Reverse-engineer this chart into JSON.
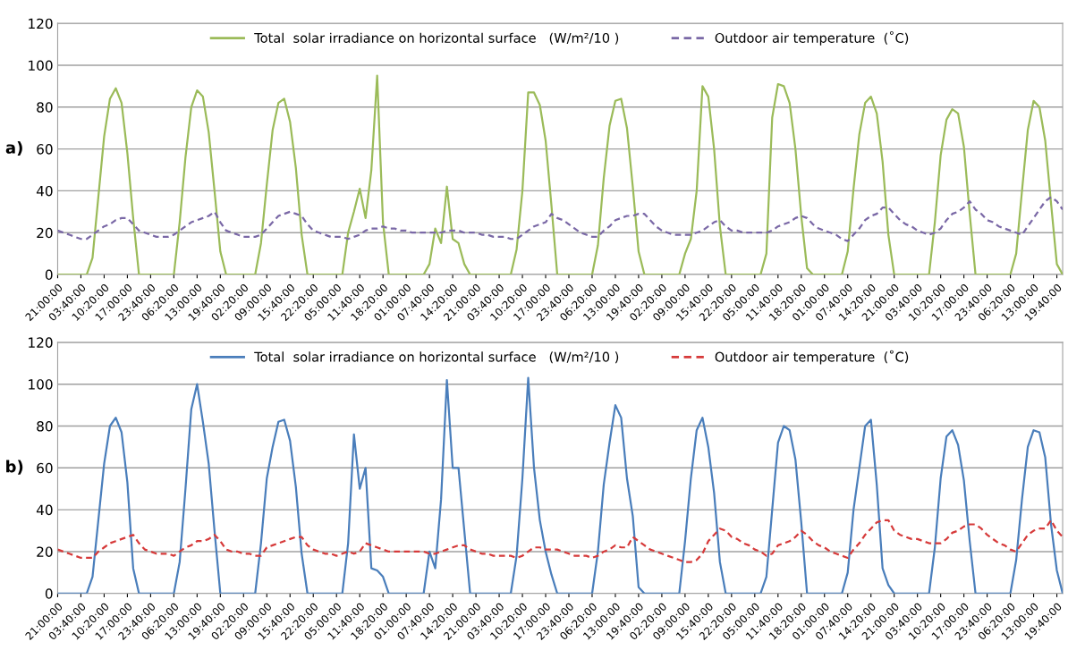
{
  "chart_data": [
    {
      "type": "line",
      "annotations": [
        "a)"
      ],
      "legend": "top",
      "grid": "y",
      "ylim": [
        0,
        120
      ],
      "yticks": [
        0,
        20,
        40,
        60,
        80,
        100,
        120
      ],
      "categories": [
        "21:00:00",
        null,
        null,
        null,
        "03:40:00",
        null,
        null,
        null,
        "10:20:00",
        null,
        null,
        null,
        "17:00:00",
        null,
        null,
        null,
        "23:40:00",
        null,
        null,
        null,
        "06:20:00",
        null,
        null,
        null,
        "13:00:00",
        null,
        null,
        null,
        "19:40:00",
        null,
        null,
        null,
        "02:20:00",
        null,
        null,
        null,
        "09:00:00",
        null,
        null,
        null,
        "15:40:00",
        null,
        null,
        null,
        "22:20:00",
        null,
        null,
        null,
        "05:00:00",
        null,
        null,
        null,
        "11:40:00",
        null,
        null,
        null,
        "18:20:00",
        null,
        null,
        null,
        "01:00:00",
        null,
        null,
        null,
        "07:40:00",
        null,
        null,
        null,
        "14:20:00",
        null,
        null,
        null,
        "21:00:00",
        null,
        null,
        null,
        "03:40:00",
        null,
        null,
        null,
        "10:20:00",
        null,
        null,
        null,
        "17:00:00",
        null,
        null,
        null,
        "23:40:00",
        null,
        null,
        null,
        "06:20:00",
        null,
        null,
        null,
        "13:00:00",
        null,
        null,
        null,
        "19:40:00",
        null,
        null,
        null,
        "02:20:00",
        null,
        null,
        null,
        "09:00:00",
        null,
        null,
        null,
        "15:40:00",
        null,
        null,
        null,
        "22:20:00",
        null,
        null,
        null,
        "05:00:00",
        null,
        null,
        null,
        "11:40:00",
        null,
        null,
        null,
        "18:20:00",
        null,
        null,
        null,
        "01:00:00",
        null,
        null,
        null,
        "07:40:00",
        null,
        null,
        null,
        "14:20:00",
        null,
        null,
        null,
        "21:00:00",
        null,
        null,
        null,
        "03:40:00",
        null,
        null,
        null,
        "10:20:00",
        null,
        null,
        null,
        "17:00:00",
        null,
        null,
        null,
        "23:40:00",
        null,
        null,
        null,
        "06:20:00",
        null,
        null,
        null,
        "13:00:00",
        null,
        null,
        null,
        "19:40:00",
        null
      ],
      "series": [
        {
          "name": "Total  solar irradiance on horizontal surface   (W/m²/10 )",
          "color": "#9bbb59",
          "line_style": "solid",
          "values": [
            0,
            0,
            0,
            0,
            0,
            0,
            8,
            37,
            66,
            84,
            89,
            82,
            58,
            27,
            0,
            0,
            0,
            0,
            0,
            0,
            0,
            25,
            56,
            80,
            88,
            85,
            68,
            40,
            11,
            0,
            0,
            0,
            0,
            0,
            0,
            15,
            43,
            69,
            82,
            84,
            73,
            51,
            19,
            0,
            0,
            0,
            0,
            0,
            0,
            0,
            20,
            30,
            41,
            27,
            50,
            95,
            25,
            0,
            0,
            0,
            0,
            0,
            0,
            0,
            5,
            22,
            15,
            42,
            17,
            15,
            5,
            0,
            0,
            0,
            0,
            0,
            0,
            0,
            0,
            12,
            40,
            87,
            87,
            81,
            64,
            33,
            0,
            0,
            0,
            0,
            0,
            0,
            0,
            14,
            46,
            71,
            83,
            84,
            70,
            42,
            11,
            0,
            0,
            0,
            0,
            0,
            0,
            0,
            10,
            17,
            40,
            90,
            85,
            60,
            23,
            0,
            0,
            0,
            0,
            0,
            0,
            0,
            10,
            75,
            91,
            90,
            82,
            60,
            28,
            3,
            0,
            0,
            0,
            0,
            0,
            0,
            11,
            41,
            67,
            82,
            85,
            77,
            54,
            19,
            0,
            0,
            0,
            0,
            0,
            0,
            0,
            25,
            57,
            74,
            79,
            77,
            61,
            29,
            0,
            0,
            0,
            0,
            0,
            0,
            0,
            10,
            40,
            69,
            83,
            80,
            64,
            34,
            5,
            0
          ]
        },
        {
          "name": "Outdoor air temperature  (˚C)",
          "color": "#7a68a6",
          "line_style": "dashed",
          "values": [
            21,
            20,
            19,
            18,
            17,
            17,
            19,
            21,
            23,
            24,
            26,
            27,
            27,
            24,
            21,
            20,
            19,
            18,
            18,
            18,
            19,
            21,
            23,
            25,
            26,
            27,
            28,
            30,
            25,
            21,
            20,
            19,
            18,
            18,
            18,
            19,
            22,
            25,
            28,
            29,
            30,
            29,
            28,
            24,
            21,
            20,
            19,
            18,
            18,
            18,
            17,
            18,
            19,
            21,
            22,
            22,
            23,
            22,
            22,
            21,
            21,
            20,
            20,
            20,
            20,
            20,
            20,
            21,
            21,
            21,
            20,
            20,
            20,
            19,
            19,
            18,
            18,
            18,
            17,
            17,
            19,
            21,
            23,
            24,
            25,
            29,
            27,
            26,
            24,
            22,
            20,
            19,
            18,
            18,
            21,
            23,
            26,
            27,
            28,
            28,
            29,
            29,
            26,
            23,
            21,
            20,
            19,
            19,
            19,
            19,
            20,
            21,
            23,
            25,
            26,
            23,
            21,
            21,
            20,
            20,
            20,
            20,
            20,
            21,
            23,
            24,
            25,
            27,
            28,
            27,
            24,
            22,
            21,
            20,
            19,
            17,
            16,
            19,
            22,
            26,
            28,
            29,
            32,
            32,
            29,
            26,
            24,
            23,
            21,
            20,
            19,
            20,
            22,
            26,
            29,
            30,
            32,
            35,
            31,
            29,
            26,
            25,
            23,
            22,
            21,
            20,
            19,
            23,
            27,
            31,
            35,
            37,
            35,
            31
          ]
        }
      ]
    },
    {
      "type": "line",
      "annotations": [
        "b)"
      ],
      "legend": "top",
      "grid": "y",
      "ylim": [
        0,
        120
      ],
      "yticks": [
        0,
        20,
        40,
        60,
        80,
        100,
        120
      ],
      "categories": [
        "21:00:00",
        null,
        null,
        null,
        "03:40:00",
        null,
        null,
        null,
        "10:20:00",
        null,
        null,
        null,
        "17:00:00",
        null,
        null,
        null,
        "23:40:00",
        null,
        null,
        null,
        "06:20:00",
        null,
        null,
        null,
        "13:00:00",
        null,
        null,
        null,
        "19:40:00",
        null,
        null,
        null,
        "02:20:00",
        null,
        null,
        null,
        "09:00:00",
        null,
        null,
        null,
        "15:40:00",
        null,
        null,
        null,
        "22:20:00",
        null,
        null,
        null,
        "05:00:00",
        null,
        null,
        null,
        "11:40:00",
        null,
        null,
        null,
        "18:20:00",
        null,
        null,
        null,
        "01:00:00",
        null,
        null,
        null,
        "07:40:00",
        null,
        null,
        null,
        "14:20:00",
        null,
        null,
        null,
        "21:00:00",
        null,
        null,
        null,
        "03:40:00",
        null,
        null,
        null,
        "10:20:00",
        null,
        null,
        null,
        "17:00:00",
        null,
        null,
        null,
        "23:40:00",
        null,
        null,
        null,
        "06:20:00",
        null,
        null,
        null,
        "13:00:00",
        null,
        null,
        null,
        "19:40:00",
        null,
        null,
        null,
        "02:20:00",
        null,
        null,
        null,
        "09:00:00",
        null,
        null,
        null,
        "15:40:00",
        null,
        null,
        null,
        "22:20:00",
        null,
        null,
        null,
        "05:00:00",
        null,
        null,
        null,
        "11:40:00",
        null,
        null,
        null,
        "18:20:00",
        null,
        null,
        null,
        "01:00:00",
        null,
        null,
        null,
        "07:40:00",
        null,
        null,
        null,
        "14:20:00",
        null,
        null,
        null,
        "21:00:00",
        null,
        null,
        null,
        "03:40:00",
        null,
        null,
        null,
        "10:20:00",
        null,
        null,
        null,
        "17:00:00",
        null,
        null,
        null,
        "23:40:00",
        null,
        null,
        null,
        "06:20:00",
        null,
        null,
        null,
        "13:00:00",
        null,
        null,
        null,
        "19:40:00",
        null
      ],
      "series": [
        {
          "name": "Total  solar irradiance on horizontal surface   (W/m²/10 )",
          "color": "#4a7ebb",
          "line_style": "solid",
          "values": [
            0,
            0,
            0,
            0,
            0,
            0,
            8,
            35,
            62,
            80,
            84,
            77,
            53,
            12,
            0,
            0,
            0,
            0,
            0,
            0,
            0,
            15,
            50,
            88,
            100,
            82,
            62,
            30,
            0,
            0,
            0,
            0,
            0,
            0,
            0,
            24,
            55,
            70,
            82,
            83,
            73,
            51,
            19,
            0,
            0,
            0,
            0,
            0,
            0,
            0,
            24,
            76,
            50,
            60,
            12,
            11,
            8,
            0,
            0,
            0,
            0,
            0,
            0,
            0,
            20,
            12,
            45,
            102,
            60,
            60,
            30,
            0,
            0,
            0,
            0,
            0,
            0,
            0,
            0,
            18,
            55,
            103,
            60,
            35,
            20,
            9,
            0,
            0,
            0,
            0,
            0,
            0,
            0,
            20,
            52,
            72,
            90,
            84,
            55,
            37,
            3,
            0,
            0,
            0,
            0,
            0,
            0,
            0,
            25,
            55,
            78,
            84,
            70,
            48,
            15,
            0,
            0,
            0,
            0,
            0,
            0,
            0,
            8,
            40,
            72,
            80,
            78,
            64,
            34,
            0,
            0,
            0,
            0,
            0,
            0,
            0,
            10,
            40,
            60,
            80,
            83,
            52,
            12,
            4,
            0,
            0,
            0,
            0,
            0,
            0,
            0,
            22,
            55,
            75,
            78,
            71,
            54,
            25,
            0,
            0,
            0,
            0,
            0,
            0,
            0,
            16,
            45,
            70,
            78,
            77,
            65,
            33,
            11,
            0
          ]
        },
        {
          "name": "Outdoor air temperature  (˚C)",
          "color": "#d63a3a",
          "line_style": "dashed",
          "values": [
            21,
            20,
            19,
            18,
            17,
            17,
            17,
            20,
            22,
            24,
            25,
            26,
            27,
            28,
            24,
            21,
            20,
            19,
            19,
            19,
            18,
            20,
            22,
            23,
            25,
            25,
            26,
            28,
            25,
            21,
            20,
            20,
            19,
            19,
            18,
            18,
            22,
            23,
            24,
            25,
            26,
            27,
            27,
            23,
            21,
            20,
            19,
            19,
            18,
            19,
            20,
            19,
            20,
            24,
            23,
            22,
            21,
            20,
            20,
            20,
            20,
            20,
            20,
            20,
            19,
            19,
            20,
            21,
            22,
            23,
            23,
            21,
            20,
            19,
            19,
            18,
            18,
            18,
            18,
            17,
            18,
            20,
            22,
            22,
            21,
            21,
            21,
            20,
            19,
            18,
            18,
            18,
            17,
            18,
            20,
            21,
            23,
            22,
            22,
            27,
            25,
            23,
            21,
            20,
            19,
            18,
            17,
            16,
            15,
            15,
            16,
            19,
            25,
            28,
            31,
            30,
            27,
            26,
            24,
            23,
            21,
            20,
            18,
            19,
            23,
            24,
            25,
            27,
            30,
            28,
            25,
            23,
            22,
            20,
            19,
            18,
            17,
            21,
            24,
            28,
            31,
            34,
            35,
            35,
            30,
            28,
            27,
            26,
            26,
            25,
            24,
            24,
            24,
            26,
            29,
            30,
            32,
            33,
            33,
            31,
            28,
            26,
            24,
            23,
            21,
            20,
            24,
            28,
            30,
            31,
            31,
            35,
            30,
            27
          ]
        }
      ]
    }
  ]
}
